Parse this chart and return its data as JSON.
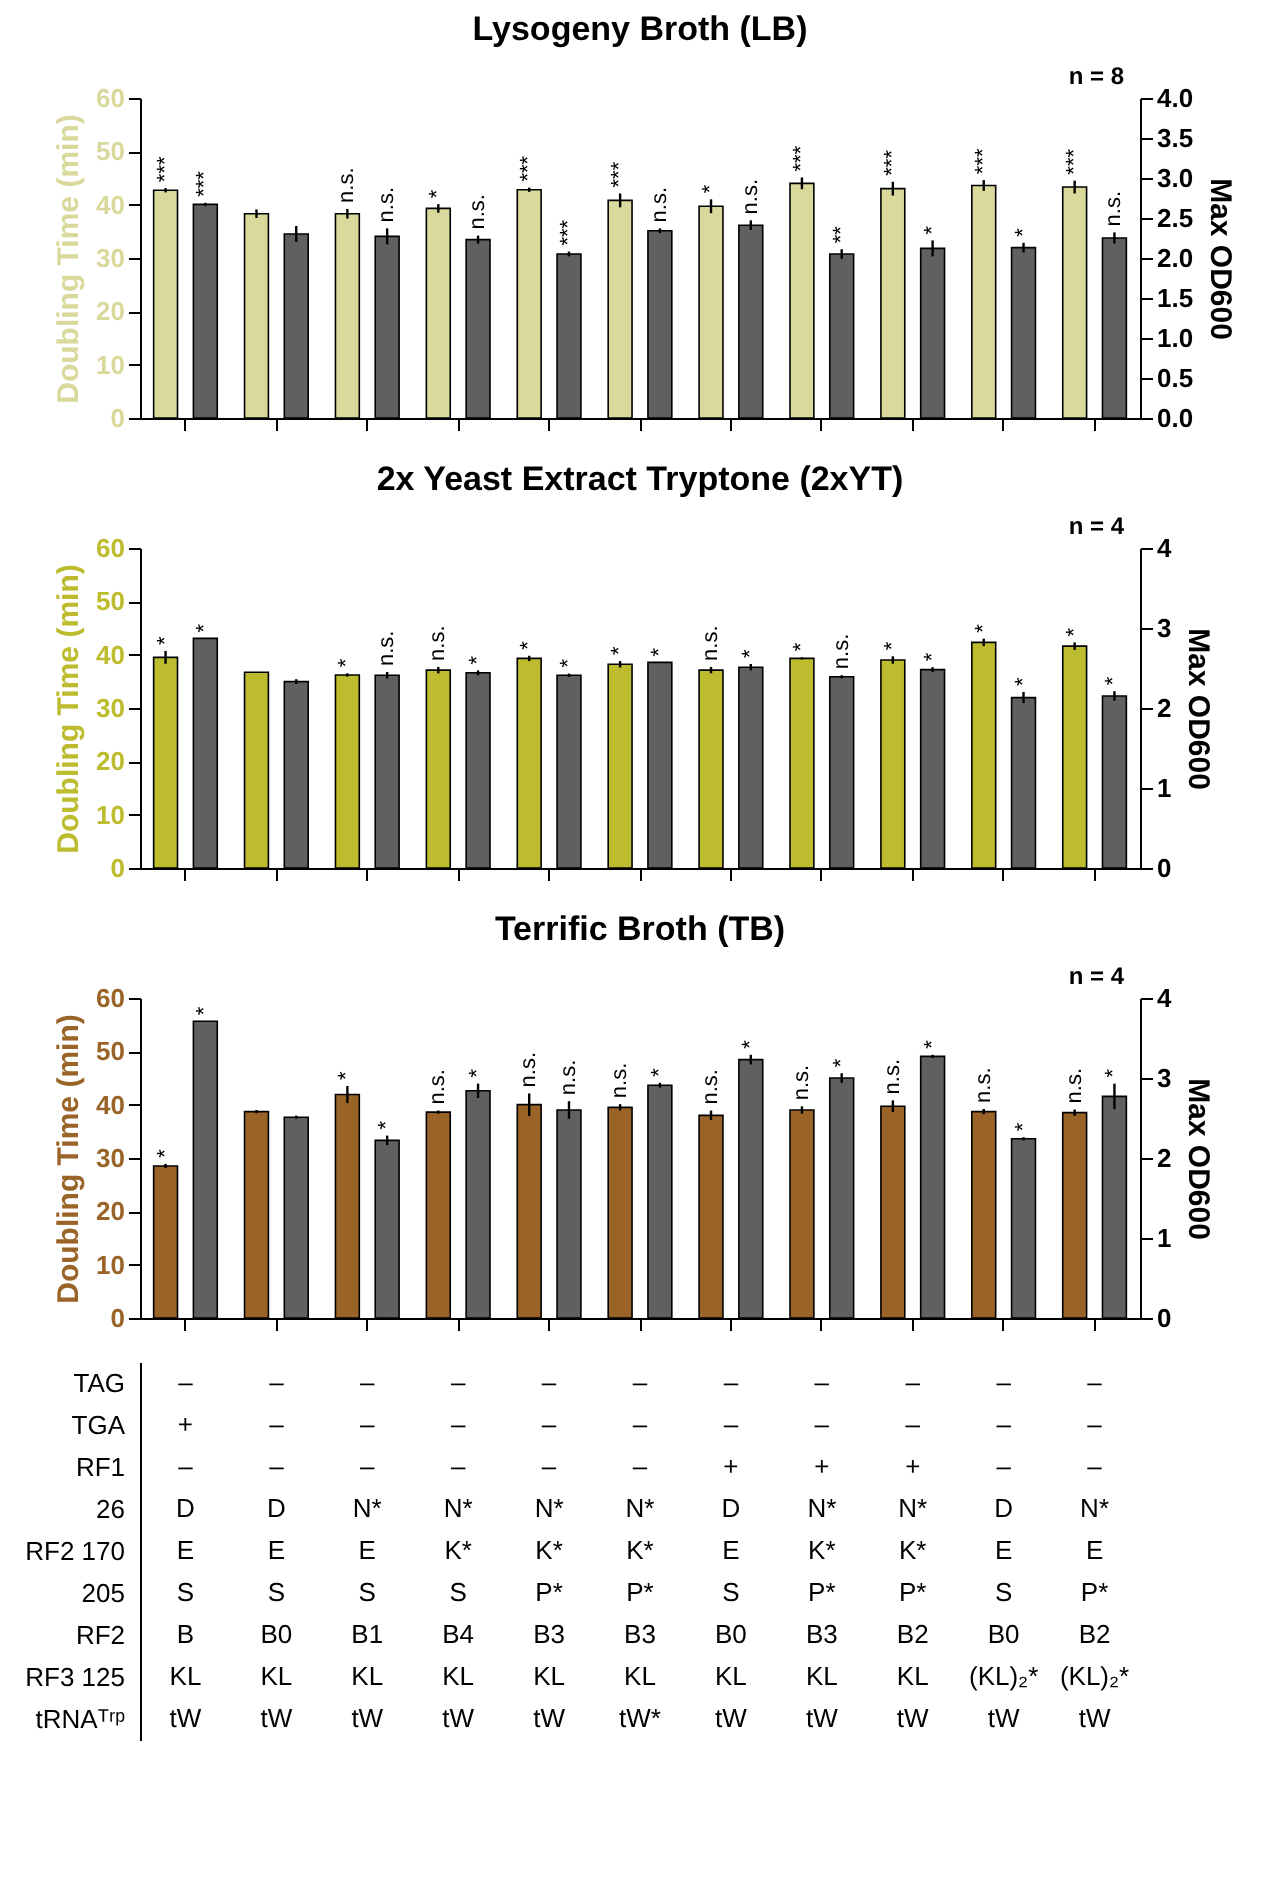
{
  "chart_data": [
    {
      "type": "bar",
      "title": "Lysogeny Broth (LB)",
      "annotations": [
        "n = 8"
      ],
      "ylabel": "Doubling Time (min)",
      "y2label": "Max OD600",
      "categories": [
        null,
        null,
        null,
        null,
        null,
        null,
        null,
        null,
        null,
        null,
        null
      ],
      "series": [
        {
          "color": "#d9d99c",
          "values": [
            42.7,
            38.3,
            38.3,
            39.3,
            42.8,
            40.8,
            39.7,
            44.0,
            43.0,
            43.6,
            43.3
          ],
          "errors": [
            0.4,
            0.8,
            0.9,
            0.8,
            0.4,
            1.3,
            1.3,
            1.1,
            1.3,
            1.0,
            1.2
          ],
          "value_labels": [
            "***",
            null,
            "n.s.",
            "*",
            "***",
            "***",
            "*",
            "***",
            "***",
            "***",
            "***"
          ]
        },
        {
          "color": "#606060",
          "axis": "y2",
          "values": [
            2.67,
            2.3,
            2.27,
            2.23,
            2.05,
            2.34,
            2.41,
            2.05,
            2.12,
            2.13,
            2.25
          ],
          "errors": [
            0.02,
            0.1,
            0.1,
            0.05,
            0.03,
            0.03,
            0.06,
            0.06,
            0.1,
            0.06,
            0.07
          ],
          "value_labels": [
            "***",
            null,
            "n.s.",
            "n.s.",
            "***",
            "n.s.",
            "n.s.",
            "**",
            "*",
            "*",
            "n.s."
          ]
        }
      ],
      "ylim": [
        0,
        60
      ],
      "yticks": [
        0,
        10,
        20,
        30,
        40,
        50,
        60
      ],
      "y2lim": [
        0,
        4
      ],
      "y2ticks": [
        {
          "value": 0,
          "label": "0.0"
        },
        0.5,
        {
          "value": 1,
          "label": "1.0"
        },
        1.5,
        {
          "value": 2,
          "label": "2.0"
        },
        2.5,
        {
          "value": 3,
          "label": "3.0"
        },
        3.5,
        {
          "value": 4,
          "label": "4.0"
        }
      ]
    },
    {
      "type": "bar",
      "title": "2x Yeast Extract Tryptone (2xYT)",
      "annotations": [
        "n = 4"
      ],
      "ylabel": "Doubling Time (min)",
      "y2label": "Max OD600",
      "categories": [
        null,
        null,
        null,
        null,
        null,
        null,
        null,
        null,
        null,
        null,
        null
      ],
      "series": [
        {
          "color": "#bcbc2e",
          "values": [
            39.5,
            36.7,
            36.2,
            37.1,
            39.3,
            38.2,
            37.1,
            39.3,
            39.0,
            42.3,
            41.6
          ],
          "errors": [
            1.2,
            null,
            0.3,
            0.6,
            0.5,
            0.6,
            0.6,
            0.2,
            0.7,
            0.7,
            0.7
          ],
          "value_labels": [
            "*",
            null,
            "*",
            "n.s.",
            "*",
            "*",
            "n.s.",
            "*",
            "*",
            "*",
            "*"
          ]
        },
        {
          "color": "#606060",
          "axis": "y2",
          "values": [
            2.87,
            2.33,
            2.41,
            2.44,
            2.41,
            2.57,
            2.51,
            2.39,
            2.48,
            2.13,
            2.15
          ],
          "errors": [
            null,
            0.03,
            0.04,
            0.03,
            0.02,
            null,
            0.04,
            0.02,
            0.03,
            0.07,
            0.06
          ],
          "value_labels": [
            "*",
            null,
            "n.s.",
            "*",
            "*",
            "*",
            "*",
            "n.s.",
            "*",
            "*",
            "*"
          ]
        }
      ],
      "ylim": [
        0,
        60
      ],
      "yticks": [
        0,
        10,
        20,
        30,
        40,
        50,
        60
      ],
      "y2lim": [
        0,
        4
      ],
      "y2ticks": [
        0,
        1,
        2,
        3,
        4
      ]
    },
    {
      "type": "bar",
      "title": "Terrific Broth (TB)",
      "annotations": [
        "n = 4"
      ],
      "ylabel": "Doubling Time (min)",
      "y2label": "Max OD600",
      "categories": [
        null,
        null,
        null,
        null,
        null,
        null,
        null,
        null,
        null,
        null,
        null
      ],
      "series": [
        {
          "color": "#9a6428",
          "values": [
            28.5,
            38.7,
            41.9,
            38.6,
            40.0,
            39.5,
            38.0,
            39.0,
            39.7,
            38.7,
            38.5
          ],
          "errors": [
            0.4,
            0.3,
            1.6,
            0.3,
            2.1,
            0.6,
            0.9,
            0.7,
            1.1,
            0.5,
            0.6
          ],
          "value_labels": [
            "*",
            null,
            "*",
            "n.s.",
            "n.s.",
            "n.s.",
            "n.s.",
            "n.s.",
            "n.s.",
            "n.s.",
            "n.s."
          ]
        },
        {
          "color": "#606060",
          "axis": "y2",
          "values": [
            3.71,
            2.51,
            2.22,
            2.84,
            2.6,
            2.91,
            3.23,
            3.0,
            3.27,
            2.24,
            2.77
          ],
          "errors": [
            null,
            0.02,
            0.06,
            0.09,
            0.11,
            0.03,
            0.06,
            0.06,
            0.02,
            0.02,
            0.16
          ],
          "value_labels": [
            "*",
            null,
            "*",
            "*",
            "n.s.",
            "*",
            "*",
            "*",
            "*",
            "*",
            "*"
          ]
        }
      ],
      "ylim": [
        0,
        60
      ],
      "yticks": [
        0,
        10,
        20,
        30,
        40,
        50,
        60
      ],
      "y2lim": [
        0,
        4
      ],
      "y2ticks": [
        0,
        1,
        2,
        3,
        4
      ]
    },
    {
      "type": "other",
      "y_categories": [
        "TAG",
        "TGA",
        "RF1",
        "26",
        "RF2  170",
        "205",
        "RF2",
        "RF3  125",
        "tRNAᵀʳᵖ"
      ],
      "cell_labels": [
        [
          "–",
          "–",
          "–",
          "–",
          "–",
          "–",
          "–",
          "–",
          "–",
          "–",
          "–"
        ],
        [
          "+",
          "–",
          "–",
          "–",
          "–",
          "–",
          "–",
          "–",
          "–",
          "–",
          "–"
        ],
        [
          "–",
          "–",
          "–",
          "–",
          "–",
          "–",
          "+",
          "+",
          "+",
          "–",
          "–"
        ],
        [
          "D",
          "D",
          "N*",
          "N*",
          "N*",
          "N*",
          "D",
          "N*",
          "N*",
          "D",
          "N*"
        ],
        [
          "E",
          "E",
          "E",
          "K*",
          "K*",
          "K*",
          "E",
          "K*",
          "K*",
          "E",
          "E"
        ],
        [
          "S",
          "S",
          "S",
          "S",
          "P*",
          "P*",
          "S",
          "P*",
          "P*",
          "S",
          "P*"
        ],
        [
          "B",
          "B0",
          "B1",
          "B4",
          "B3",
          "B3",
          "B0",
          "B3",
          "B2",
          "B0",
          "B2"
        ],
        [
          "KL",
          "KL",
          "KL",
          "KL",
          "KL",
          "KL",
          "KL",
          "KL",
          "KL",
          "(KL)₂*",
          "(KL)₂*"
        ],
        [
          "tW",
          "tW",
          "tW",
          "tW",
          "tW",
          "tW*",
          "tW",
          "tW",
          "tW",
          "tW",
          "tW"
        ]
      ]
    }
  ]
}
